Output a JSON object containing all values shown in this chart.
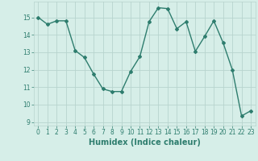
{
  "x": [
    0,
    1,
    2,
    3,
    4,
    5,
    6,
    7,
    8,
    9,
    10,
    11,
    12,
    13,
    14,
    15,
    16,
    17,
    18,
    19,
    20,
    21,
    22,
    23
  ],
  "y": [
    15.0,
    14.6,
    14.8,
    14.8,
    13.1,
    12.7,
    11.75,
    10.9,
    10.75,
    10.75,
    11.9,
    12.75,
    14.75,
    15.55,
    15.5,
    14.35,
    14.75,
    13.05,
    13.9,
    14.8,
    13.55,
    12.0,
    9.35,
    9.65
  ],
  "line_color": "#2e7d6e",
  "marker": "D",
  "marker_size": 2,
  "bg_color": "#d6eee8",
  "grid_color": "#b8d4ce",
  "xlabel": "Humidex (Indice chaleur)",
  "ylim": [
    8.8,
    15.9
  ],
  "xlim": [
    -0.5,
    23.5
  ],
  "yticks": [
    9,
    10,
    11,
    12,
    13,
    14,
    15
  ],
  "xticks": [
    0,
    1,
    2,
    3,
    4,
    5,
    6,
    7,
    8,
    9,
    10,
    11,
    12,
    13,
    14,
    15,
    16,
    17,
    18,
    19,
    20,
    21,
    22,
    23
  ],
  "tick_fontsize": 5.5,
  "xlabel_fontsize": 7,
  "line_width": 1.0
}
